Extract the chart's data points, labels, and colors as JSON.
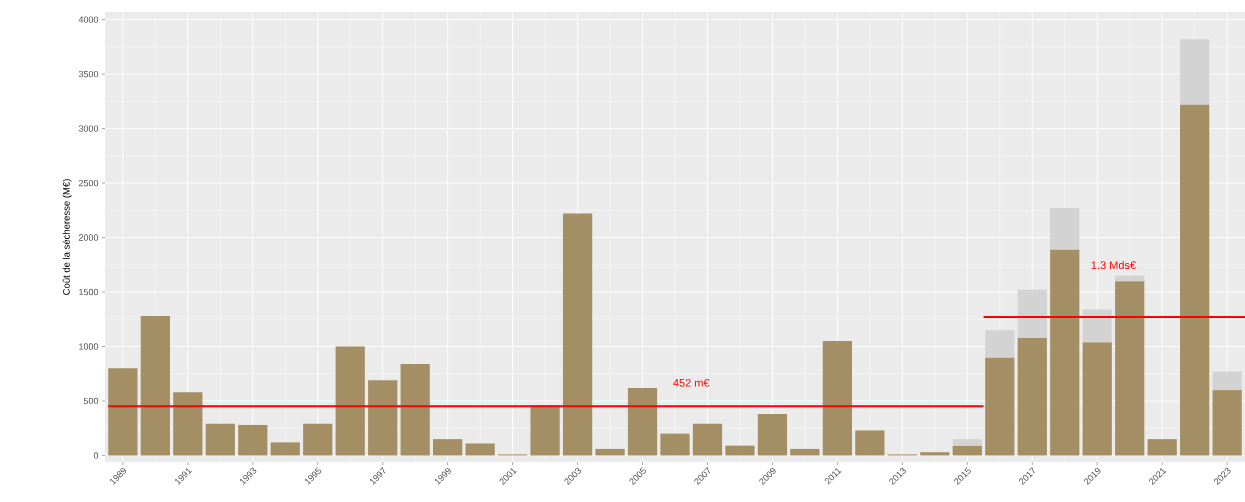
{
  "chart_data": {
    "type": "bar",
    "ylabel": "Coût de la sécheresse (M€)",
    "x": [
      1989,
      1990,
      1991,
      1992,
      1993,
      1994,
      1995,
      1996,
      1997,
      1998,
      1999,
      2000,
      2001,
      2002,
      2003,
      2004,
      2005,
      2006,
      2007,
      2008,
      2009,
      2010,
      2011,
      2012,
      2013,
      2014,
      2015,
      2016,
      2017,
      2018,
      2019,
      2020,
      2021,
      2022,
      2023
    ],
    "stacked": true,
    "series": [
      {
        "color": "#a38f63",
        "values": [
          800,
          1280,
          580,
          290,
          280,
          120,
          290,
          1000,
          690,
          840,
          150,
          110,
          10,
          460,
          2220,
          60,
          620,
          200,
          290,
          90,
          380,
          60,
          1050,
          230,
          10,
          30,
          90,
          900,
          1080,
          1890,
          1040,
          1600,
          150,
          3220,
          600
        ]
      },
      {
        "color": "#d3d3d3",
        "values": [
          0,
          0,
          0,
          0,
          0,
          0,
          0,
          0,
          0,
          0,
          0,
          0,
          0,
          0,
          0,
          0,
          0,
          0,
          0,
          0,
          0,
          0,
          0,
          0,
          0,
          0,
          60,
          250,
          440,
          380,
          300,
          50,
          0,
          600,
          170
        ]
      },
      {
        "type": "line",
        "color": "#ff0000",
        "x": [
          1988.55,
          2015.5
        ],
        "values": [
          452,
          452
        ]
      },
      {
        "type": "line",
        "color": "#ff0000",
        "x": [
          2015.5,
          2023.55
        ],
        "values": [
          1270,
          1270
        ]
      }
    ],
    "annotations": [
      {
        "text": "452 m€",
        "x": 2006.5,
        "y": 452
      },
      {
        "text": "1.3 Mds€",
        "x": 2019.5,
        "y": 1660
      }
    ],
    "xlim": [
      1988.45,
      2023.55
    ],
    "ylim": [
      -60,
      4070
    ],
    "xticks": [
      1989,
      1991,
      1993,
      1995,
      1997,
      1999,
      2001,
      2003,
      2005,
      2007,
      2009,
      2011,
      2013,
      2015,
      2017,
      2019,
      2021,
      2023
    ],
    "yticks": [
      0,
      500,
      1000,
      1500,
      2000,
      2500,
      3000,
      3500,
      4000
    ],
    "grid": true
  }
}
